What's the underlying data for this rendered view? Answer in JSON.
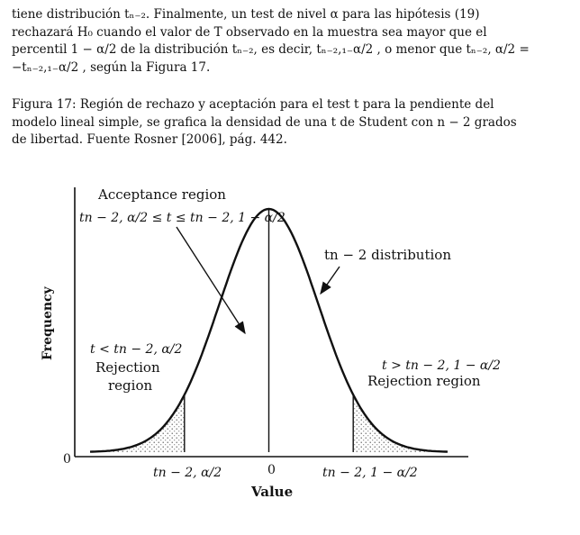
{
  "paragraph": {
    "line1": "tiene distribución tₙ₋₂. Finalmente, un test de nivel α para las hipótesis (19)",
    "line2": "rechazará H₀ cuando el valor de T observado en la muestra sea mayor que el",
    "line3": "percentil 1 − α/2 de la distribución tₙ₋₂, es decir, tₙ₋₂,₁₋α/2 , o menor que tₙ₋₂, α/2 =",
    "line4": "−tₙ₋₂,₁₋α/2 , según la Figura 17."
  },
  "caption": {
    "line1": "Figura 17: Región de rechazo y aceptación para el test t para la pendiente del",
    "line2": "modelo lineal simple, se grafica la densidad de una t de Student con n − 2 grados",
    "line3": "de libertad. Fuente Rosner [2006], pág. 442."
  },
  "figure": {
    "acceptance_title": "Acceptance region",
    "acceptance_formula": "tn − 2, α/2 ≤ t ≤ tn − 2, 1 − α/2",
    "distribution_label": "tn − 2 distribution",
    "left_condition": "t < tn − 2, α/2",
    "left_rejection_line1": "Rejection",
    "left_rejection_line2": "region",
    "right_condition": "t > tn − 2, 1 − α/2",
    "right_rejection": "Rejection region",
    "ylabel": "Frequency",
    "xlabel": "Value",
    "origin": "0",
    "tick_left": "tn − 2, α/2",
    "tick_center": "0",
    "tick_right": "tn − 2, 1 − α/2"
  },
  "chart_data": {
    "type": "area",
    "title": "",
    "xlabel": "Value",
    "ylabel": "Frequency",
    "xlim": [
      -3.6,
      3.6
    ],
    "ylim": [
      0,
      0.42
    ],
    "series": [
      {
        "x": [
          -3.6,
          -3.0,
          -2.5,
          -2.0,
          -1.5,
          -1.0,
          -0.5,
          0,
          0.5,
          1.0,
          1.5,
          2.0,
          2.5,
          3.0,
          3.6
        ],
        "values": [
          0.001,
          0.004,
          0.018,
          0.054,
          0.13,
          0.242,
          0.352,
          0.399,
          0.352,
          0.242,
          0.13,
          0.054,
          0.018,
          0.004,
          0.001
        ]
      }
    ],
    "critical_values": [
      -1.7,
      1.7
    ],
    "shaded_regions": [
      "left tail",
      "right tail"
    ],
    "x_ticks": [
      "tn − 2, α/2",
      "0",
      "tn − 2, 1 − α/2"
    ],
    "y_ticks": [
      "0"
    ],
    "grid": false,
    "legend": "none"
  }
}
